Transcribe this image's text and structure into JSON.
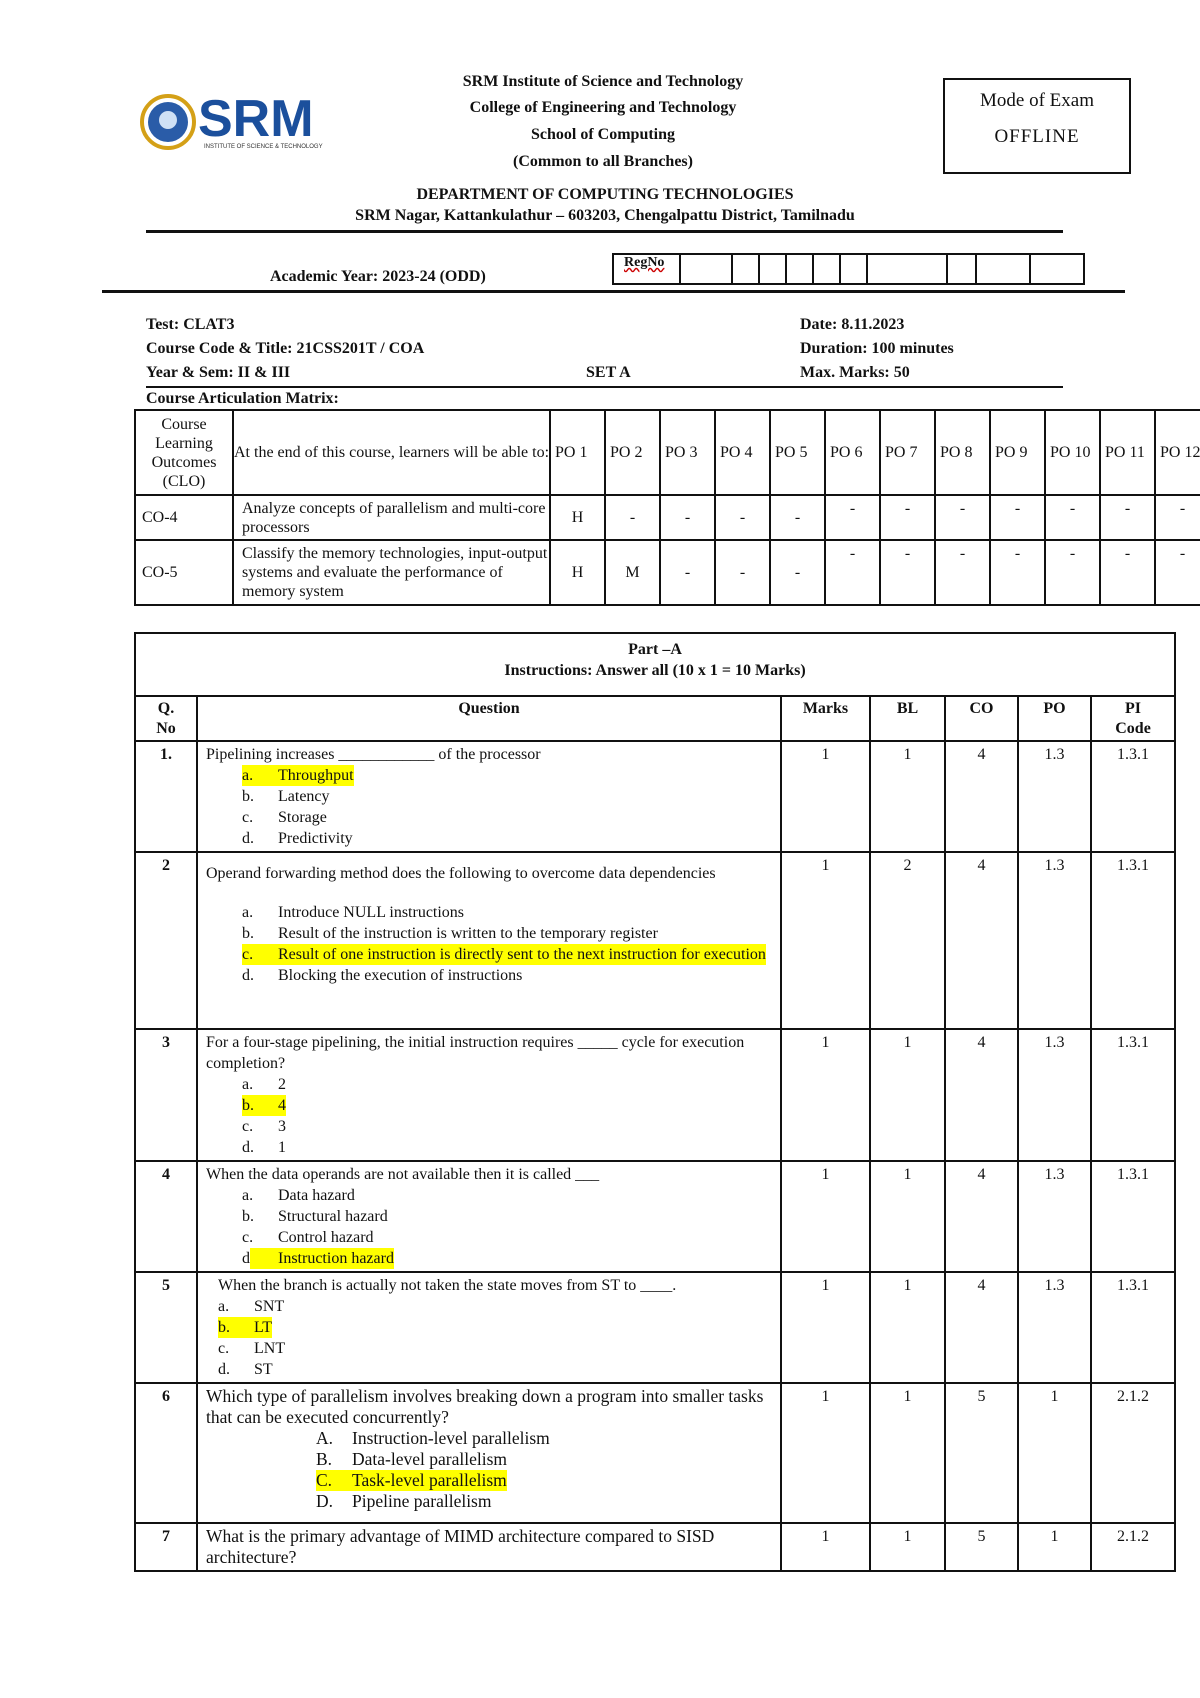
{
  "logo": {
    "text": "SRM",
    "subtext": "INSTITUTE OF SCIENCE & TECHNOLOGY",
    "brand_color": "#1b4f9c",
    "seal_color": "#d4a017"
  },
  "header": {
    "lines": [
      "SRM Institute of Science and Technology",
      "College of Engineering and Technology",
      "School of Computing",
      "(Common to all Branches)"
    ],
    "department": "DEPARTMENT OF COMPUTING TECHNOLOGIES",
    "address": "SRM Nagar, Kattankulathur – 603203, Chengalpattu District, Tamilnadu"
  },
  "mode_of_exam": {
    "label": "Mode of Exam",
    "value": "OFFLINE"
  },
  "academic_year": "Academic Year:   2023-24 (ODD)",
  "reg_no_label": "RegNo",
  "exam_info": {
    "test": "Test: CLAT3",
    "course": "Course Code & Title: 21CSS201T / COA",
    "year_sem": "Year & Sem:   II & III",
    "set": "SET A",
    "date": "Date: 8.11.2023",
    "duration": "Duration: 100 minutes",
    "max_marks": "Max. Marks: 50"
  },
  "cam": {
    "title": "Course Articulation Matrix:",
    "headers": [
      "Course Learning Outcomes (CLO)",
      "At the end of this course, learners will be able to:",
      "PO 1",
      "PO 2",
      "PO 3",
      "PO 4",
      "PO 5",
      "PO 6",
      "PO 7",
      "PO 8",
      "PO 9",
      "PO 10",
      "PO 11",
      "PO 12"
    ],
    "rows": [
      {
        "clo": "CO-4",
        "desc": "Analyze concepts of parallelism and multi-core processors",
        "po": [
          "H",
          "-",
          "-",
          "-",
          "-",
          "-",
          "-",
          "-",
          "-",
          "-",
          "-",
          "-"
        ]
      },
      {
        "clo": "CO-5",
        "desc": "Classify the memory technologies, input-output systems and evaluate the performance of memory system",
        "po": [
          "H",
          "M",
          "-",
          "-",
          "-",
          "-",
          "-",
          "-",
          "-",
          "-",
          "-",
          "-"
        ]
      }
    ]
  },
  "part_a": {
    "title": "Part –A",
    "instructions": "Instructions: Answer all (10   x  1   = 10  Marks)",
    "headers": [
      "Q. No",
      "Question",
      "Marks",
      "BL",
      "CO",
      "PO",
      "PI Code"
    ],
    "questions": [
      {
        "no": "1.",
        "text": [
          "Pipelining increases ____________ of the processor"
        ],
        "options": [
          {
            "l": "a.",
            "t": "Throughput",
            "hl": true
          },
          {
            "l": "b.",
            "t": "Latency"
          },
          {
            "l": "c.",
            "t": "Storage"
          },
          {
            "l": "d.",
            "t": "Predictivity"
          }
        ],
        "marks": "1",
        "bl": "1",
        "co": "4",
        "po": "1.3",
        "pi": "1.3.1"
      },
      {
        "no": "2",
        "text": [
          "Operand forwarding method does the following to overcome data dependencies"
        ],
        "options": [
          {
            "l": "a.",
            "t": "Introduce NULL instructions"
          },
          {
            "l": "b.",
            "t": "Result of the instruction is written to the temporary register"
          },
          {
            "l": "c.",
            "t": "Result of one instruction is directly sent to the next instruction for execution",
            "hl": true
          },
          {
            "l": "d.",
            "t": "Blocking the execution of instructions"
          }
        ],
        "marks": "1",
        "bl": "2",
        "co": "4",
        "po": "1.3",
        "pi": "1.3.1"
      },
      {
        "no": "3",
        "text": [
          "For a four-stage pipelining, the initial instruction requires _____ cycle for execution completion?"
        ],
        "options": [
          {
            "l": "a.",
            "t": "2"
          },
          {
            "l": "b.",
            "t": "4",
            "hl": true
          },
          {
            "l": "c.",
            "t": "3"
          },
          {
            "l": "d.",
            "t": "1"
          }
        ],
        "marks": "1",
        "bl": "1",
        "co": "4",
        "po": "1.3",
        "pi": "1.3.1"
      },
      {
        "no": "4",
        "text": [
          "When the data operands are not available then it is called ___"
        ],
        "options": [
          {
            "l": "a.",
            "t": "Data hazard"
          },
          {
            "l": "b.",
            "t": "Structural hazard"
          },
          {
            "l": "c.",
            "t": "Control hazard"
          },
          {
            "l": "d.",
            "t": "Instruction hazard",
            "hl": true
          }
        ],
        "marks": "1",
        "bl": "1",
        "co": "4",
        "po": "1.3",
        "pi": "1.3.1"
      },
      {
        "no": "5",
        "text": [
          "When the branch is actually not taken the state moves from ST to ____."
        ],
        "options": [
          {
            "l": "a.",
            "t": "SNT"
          },
          {
            "l": "b.",
            "t": "LT",
            "hl": true
          },
          {
            "l": "c.",
            "t": "LNT"
          },
          {
            "l": "d.",
            "t": "ST"
          }
        ],
        "marks": "1",
        "bl": "1",
        "co": "4",
        "po": "1.3",
        "pi": "1.3.1"
      },
      {
        "no": "6",
        "text": [
          "Which type of parallelism involves breaking down a program into smaller tasks that can be executed concurrently?"
        ],
        "options": [
          {
            "l": "A.",
            "t": "Instruction-level parallelism"
          },
          {
            "l": "B.",
            "t": "Data-level parallelism"
          },
          {
            "l": "C.",
            "t": "Task-level parallelism",
            "hl": true
          },
          {
            "l": "D.",
            "t": "Pipeline parallelism"
          }
        ],
        "marks": "1",
        "bl": "1",
        "co": "5",
        "po": "1",
        "pi": "2.1.2"
      },
      {
        "no": "7",
        "text": [
          "What is the primary advantage of MIMD architecture compared to SISD architecture?"
        ],
        "options": [],
        "marks": "1",
        "bl": "1",
        "co": "5",
        "po": "1",
        "pi": "2.1.2"
      }
    ]
  }
}
